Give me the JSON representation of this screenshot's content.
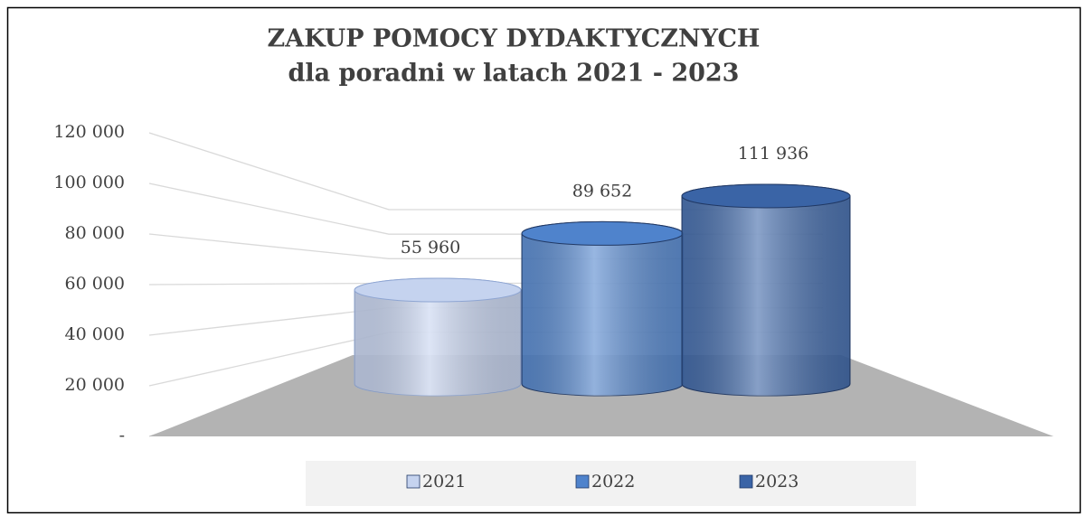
{
  "chart_data": {
    "type": "bar",
    "title": "ZAKUP POMOCY DYDAKTYCZNYCH",
    "subtitle": "dla poradni w latach 2021 - 2023",
    "series": [
      {
        "name": "2021",
        "color": "#c5d3ef",
        "values": [
          55960
        ],
        "value_labels": [
          "55 960"
        ]
      },
      {
        "name": "2022",
        "color": "#4f83cc",
        "values": [
          89652
        ],
        "value_labels": [
          "89 652"
        ]
      },
      {
        "name": "2023",
        "color": "#3a64a6",
        "values": [
          111936
        ],
        "value_labels": [
          "111 936"
        ]
      }
    ],
    "ylim": [
      0,
      120000
    ],
    "yticks": [
      {
        "value": 0,
        "label": "-"
      },
      {
        "value": 20000,
        "label": "20 000"
      },
      {
        "value": 40000,
        "label": "40 000"
      },
      {
        "value": 60000,
        "label": "60 000"
      },
      {
        "value": 80000,
        "label": "80 000"
      },
      {
        "value": 100000,
        "label": "100 000"
      },
      {
        "value": 120000,
        "label": "120 000"
      }
    ],
    "grid": true,
    "legend": "bottom"
  }
}
